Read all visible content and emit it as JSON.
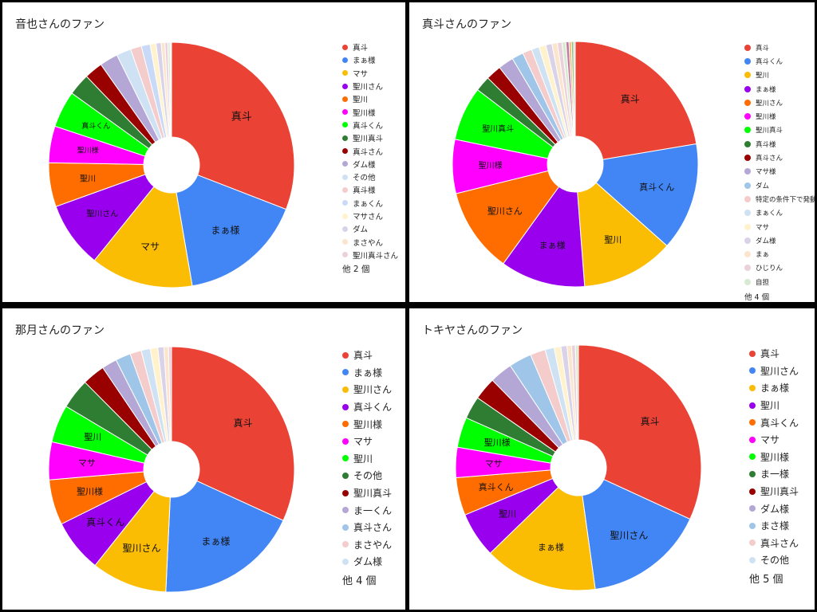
{
  "chart_data": [
    {
      "type": "pie",
      "title": "音也さんのファン",
      "legend_position": "right",
      "legend_more": "他 2 個",
      "categories": [
        "真斗",
        "まぁ様",
        "マサ",
        "聖川さん",
        "聖川",
        "聖川様",
        "真斗くん",
        "聖川真斗",
        "真斗さん",
        "ダム様",
        "その他",
        "真斗様",
        "まぁくん",
        "マサさん",
        "ダム",
        "まさやん",
        "聖川真斗さん",
        "",
        ""
      ],
      "values": [
        32,
        17,
        14,
        9,
        6,
        5,
        5,
        3,
        2.5,
        2.5,
        2,
        1.5,
        1.2,
        0.8,
        0.7,
        0.5,
        0.4,
        0.3,
        0.2
      ],
      "colors": [
        "#EA4335",
        "#4285F4",
        "#FBBC04",
        "#9900EE",
        "#FF6D01",
        "#FF00FF",
        "#00FF00",
        "#2E7D32",
        "#990000",
        "#B4A7D6",
        "#CFE2F3",
        "#F4CCCC",
        "#C9DAF8",
        "#FFF2CC",
        "#D9D2E9",
        "#FCE5CD",
        "#EAD1DC",
        "#D9EAD3",
        "#EFEFEF"
      ]
    },
    {
      "type": "pie",
      "title": "真斗さんのファン",
      "legend_position": "right",
      "legend_more": "他 4 個",
      "categories": [
        "真斗",
        "真斗くん",
        "聖川",
        "まぁ様",
        "聖川さん",
        "聖川様",
        "聖川真斗",
        "真斗様",
        "真斗さん",
        "マサ様",
        "ダム",
        "特定の条件下で発動",
        "まぁくん",
        "マサ",
        "ダム様",
        "まぁ",
        "ひじりん",
        "自担",
        "",
        "",
        "",
        ""
      ],
      "values": [
        22,
        14,
        12,
        11,
        11,
        7,
        7,
        2,
        2,
        2,
        1.5,
        1.2,
        1,
        0.9,
        0.8,
        0.7,
        0.6,
        0.5,
        0.4,
        0.3,
        0.3,
        0.2
      ],
      "colors": [
        "#EA4335",
        "#4285F4",
        "#FBBC04",
        "#9900EE",
        "#FF6D01",
        "#FF00FF",
        "#00FF00",
        "#2E7D32",
        "#990000",
        "#B4A7D6",
        "#9FC5E8",
        "#F4CCCC",
        "#CFE2F3",
        "#FFF2CC",
        "#D9D2E9",
        "#FCE5CD",
        "#EAD1DC",
        "#D9EAD3",
        "#C27BA0",
        "#F6B26B",
        "#93C47D",
        "#CCCCCC"
      ]
    },
    {
      "type": "pie",
      "title": "那月さんのファン",
      "legend_position": "right",
      "legend_more": "他 4 個",
      "categories": [
        "真斗",
        "まぁ様",
        "聖川さん",
        "真斗くん",
        "聖川様",
        "マサ",
        "聖川",
        "その他",
        "聖川真斗",
        "ま一くん",
        "真斗さん",
        "まさやん",
        "ダム様",
        "",
        "",
        "",
        ""
      ],
      "values": [
        32,
        19,
        10,
        7,
        6,
        5,
        5,
        4,
        3,
        2,
        2,
        1.5,
        1.2,
        1,
        0.8,
        0.6,
        0.4
      ],
      "colors": [
        "#EA4335",
        "#4285F4",
        "#FBBC04",
        "#9900EE",
        "#FF6D01",
        "#FF00FF",
        "#00FF00",
        "#2E7D32",
        "#990000",
        "#B4A7D6",
        "#9FC5E8",
        "#F4CCCC",
        "#CFE2F3",
        "#FFF2CC",
        "#D9D2E9",
        "#FCE5CD",
        "#EAD1DC"
      ]
    },
    {
      "type": "pie",
      "title": "トキヤさんのファン",
      "legend_position": "right",
      "legend_more": "他 5 個",
      "categories": [
        "真斗",
        "聖川さん",
        "まぁ様",
        "聖川",
        "真斗くん",
        "マサ",
        "聖川様",
        "ま一様",
        "聖川真斗",
        "ダム様",
        "まさ様",
        "真斗さん",
        "その他",
        "",
        "",
        "",
        "",
        ""
      ],
      "values": [
        32,
        16,
        15,
        6,
        5,
        4,
        4,
        3,
        3,
        3,
        3,
        2,
        1.2,
        0.9,
        0.8,
        0.6,
        0.5,
        0.4
      ],
      "colors": [
        "#EA4335",
        "#4285F4",
        "#FBBC04",
        "#9900EE",
        "#FF6D01",
        "#FF00FF",
        "#00FF00",
        "#2E7D32",
        "#990000",
        "#B4A7D6",
        "#9FC5E8",
        "#F4CCCC",
        "#CFE2F3",
        "#FFF2CC",
        "#D9D2E9",
        "#FCE5CD",
        "#EAD1DC",
        "#D9EAD3"
      ]
    }
  ]
}
